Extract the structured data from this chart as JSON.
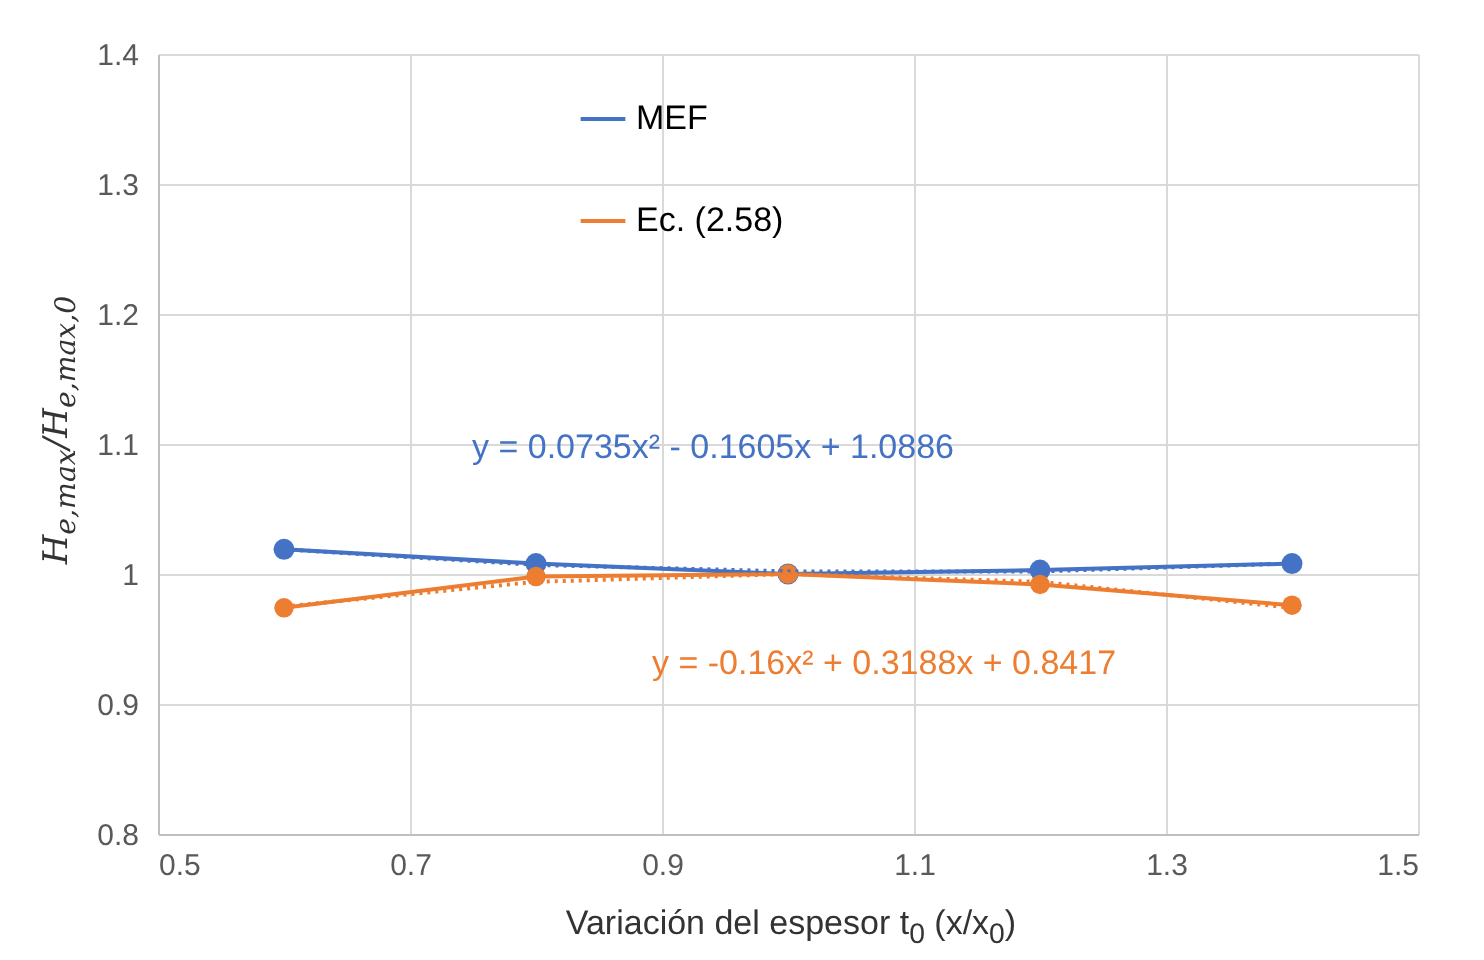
{
  "chart_data": {
    "type": "line",
    "xlabel": "Variación del espesor t$_{0}$ (x/x$_{0}$)",
    "ylabel": "H$_{e,max}$/H$_{e,max,0}$",
    "x": [
      0.6,
      0.8,
      1.0,
      1.2,
      1.4
    ],
    "series": [
      {
        "name": "MEF",
        "color": "#4472c4",
        "values": [
          1.019,
          1.008,
          1.0,
          1.003,
          1.008
        ],
        "marker": "circle"
      },
      {
        "name": "Ec. (2.58)",
        "color": "#ed7d31",
        "values": [
          0.974,
          0.998,
          1.0,
          0.992,
          0.976
        ],
        "marker": "circle"
      },
      {
        "color": "#4472c4",
        "values": [
          1.019,
          1.007,
          1.002,
          1.002,
          1.008
        ],
        "marker": "none",
        "line_style": "dotted"
      },
      {
        "color": "#ed7d31",
        "values": [
          0.975,
          0.994,
          1.0,
          0.994,
          0.974
        ],
        "marker": "none",
        "line_style": "dotted"
      }
    ],
    "annotations": [
      "y = 0.0735x² - 0.1605x + 1.0886",
      "y = -0.16x² + 0.3188x + 0.8417"
    ],
    "xlim": [
      0.5,
      1.5
    ],
    "xticks": [
      0.5,
      0.7,
      0.9,
      1.1,
      1.3,
      1.5
    ],
    "ylim": [
      0.8,
      1.4
    ],
    "yticks": [
      0.8,
      0.9,
      1,
      1.1,
      1.2,
      1.3,
      1.4
    ],
    "grid": true,
    "legend": "top left"
  }
}
